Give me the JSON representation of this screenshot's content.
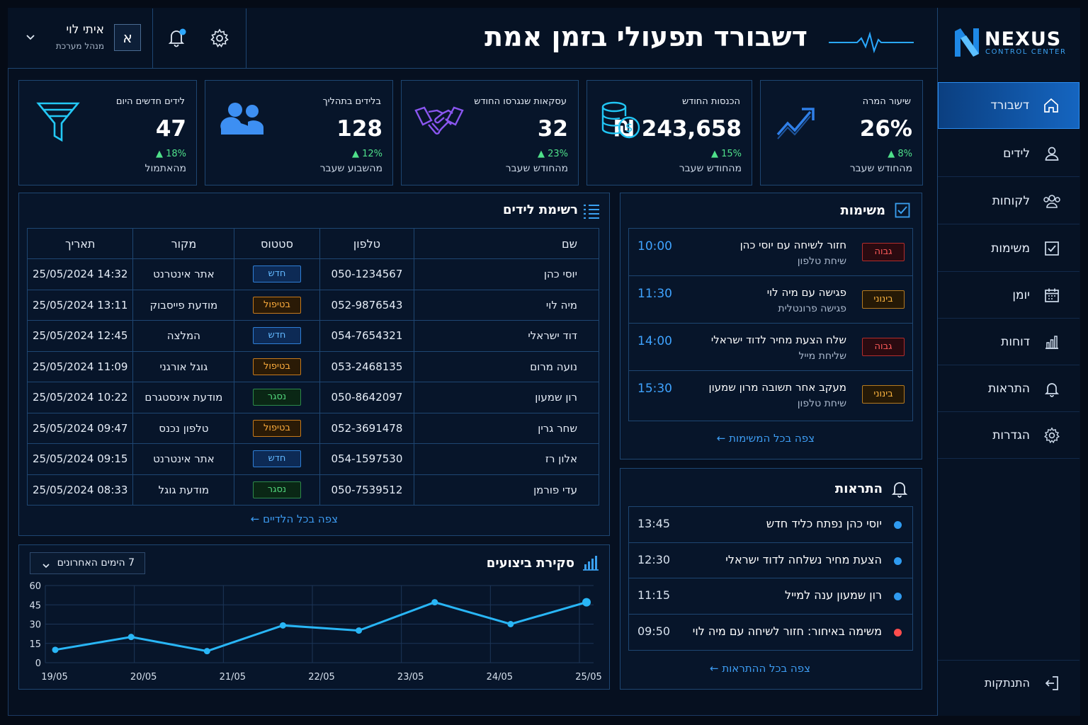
{
  "brand": {
    "name": "NEXUS",
    "subtitle": "CONTROL CENTER"
  },
  "header": {
    "title": "דשבורד תפעולי בזמן אמת"
  },
  "user": {
    "name": "איתי לוי",
    "role": "מנהל מערכת",
    "avatar_letter": "א"
  },
  "sidebar": {
    "items": [
      {
        "label": "דשבורד",
        "icon": "home-icon",
        "active": true
      },
      {
        "label": "לידים",
        "icon": "user-icon"
      },
      {
        "label": "לקוחות",
        "icon": "users-icon"
      },
      {
        "label": "משימות",
        "icon": "checkbox-icon"
      },
      {
        "label": "יומן",
        "icon": "calendar-icon"
      },
      {
        "label": "דוחות",
        "icon": "bar-chart-icon"
      },
      {
        "label": "התראות",
        "icon": "bell-icon"
      },
      {
        "label": "הגדרות",
        "icon": "gear-icon"
      }
    ],
    "logout": "התנתקות"
  },
  "kpis": [
    {
      "label": "שיעור המרה",
      "value": "26%",
      "delta": "8%",
      "foot": "מהחודש שעבר",
      "icon": "trend-up-icon"
    },
    {
      "label": "הכנסות החודש",
      "value": "243,658 ₪",
      "delta": "15%",
      "foot": "מהחודש שעבר",
      "icon": "coins-icon"
    },
    {
      "label": "עסקאות שנגרסו החודש",
      "value": "32",
      "delta": "23%",
      "foot": "מהחודש שעבר",
      "icon": "handshake-icon"
    },
    {
      "label": "בלידים בתהליך",
      "value": "128",
      "delta": "12%",
      "foot": "מהשבוע שעבר",
      "icon": "users-icon"
    },
    {
      "label": "לידים חדשים היום",
      "value": "47",
      "delta": "18%",
      "foot": "מהאתמול",
      "icon": "funnel-icon"
    }
  ],
  "leads": {
    "title": "רשימת לידים",
    "columns": [
      "שם",
      "טלפון",
      "סטטוס",
      "מקור",
      "תאריך"
    ],
    "rows": [
      {
        "name": "יוסי כהן",
        "phone": "050-1234567",
        "status": "חדש",
        "kind": "new",
        "source": "אתר אינטרנט",
        "date": "25/05/2024 14:32"
      },
      {
        "name": "מיה לוי",
        "phone": "052-9876543",
        "status": "בטיפול",
        "kind": "prog",
        "source": "מודעת פייסבוק",
        "date": "25/05/2024 13:11"
      },
      {
        "name": "דוד ישראלי",
        "phone": "054-7654321",
        "status": "חדש",
        "kind": "new",
        "source": "המלצה",
        "date": "25/05/2024 12:45"
      },
      {
        "name": "נועה מרום",
        "phone": "053-2468135",
        "status": "בטיפול",
        "kind": "prog",
        "source": "גוגל אורגני",
        "date": "25/05/2024 11:09"
      },
      {
        "name": "רון שמעון",
        "phone": "050-8642097",
        "status": "נסגר",
        "kind": "closed",
        "source": "מודעת אינסטגרם",
        "date": "25/05/2024 10:22"
      },
      {
        "name": "שחר גרין",
        "phone": "052-3691478",
        "status": "בטיפול",
        "kind": "prog",
        "source": "טלפון נכנס",
        "date": "25/05/2024 09:47"
      },
      {
        "name": "אלון רז",
        "phone": "054-1597530",
        "status": "חדש",
        "kind": "new",
        "source": "אתר אינטרנט",
        "date": "25/05/2024 09:15"
      },
      {
        "name": "עדי פורמן",
        "phone": "050-7539512",
        "status": "נסגר",
        "kind": "closed",
        "source": "מודעת גוגל",
        "date": "25/05/2024 08:33"
      }
    ],
    "view_all": "צפה בכל הלדיים"
  },
  "tasks": {
    "title": "משימות",
    "items": [
      {
        "priority": "גבוה",
        "kind": "high",
        "title": "חזור לשיחה עם יוסי כהן",
        "sub": "שיחת טלפון",
        "time": "10:00"
      },
      {
        "priority": "בינוני",
        "kind": "mid",
        "title": "פגישה עם מיה לוי",
        "sub": "פגישה פרונטלית",
        "time": "11:30"
      },
      {
        "priority": "גבוה",
        "kind": "high",
        "title": "שלח הצעת מחיר לדוד ישראלי",
        "sub": "שליחת מייל",
        "time": "14:00"
      },
      {
        "priority": "בינוני",
        "kind": "mid",
        "title": "מעקב אחר תשובה מרון שמעון",
        "sub": "שיחת טלפון",
        "time": "15:30"
      }
    ],
    "view_all": "צפה בכל המשימות"
  },
  "alerts": {
    "title": "התראות",
    "items": [
      {
        "text": "יוסי כהן נפתח כליד חדש",
        "time": "13:45",
        "color": "#2f9bf0"
      },
      {
        "text": "הצעת מחיר נשלחה לדוד ישראלי",
        "time": "12:30",
        "color": "#2f9bf0"
      },
      {
        "text": "רון שמעון ענה למייל",
        "time": "11:15",
        "color": "#2f9bf0"
      },
      {
        "text": "משימה באיחור: חזור לשיחה עם מיה לוי",
        "time": "09:50",
        "color": "#ff4d4d"
      }
    ],
    "view_all": "צפה בכל ההתראות"
  },
  "performance": {
    "title": "סקירת ביצועים",
    "period": "7 הימים האחרונים"
  },
  "chart_data": {
    "type": "line",
    "x": [
      "19/05",
      "",
      "20/05",
      "21/05",
      "22/05",
      "23/05",
      "24/05",
      "25/05"
    ],
    "x_ticks": [
      "19/05",
      "20/05",
      "21/05",
      "22/05",
      "23/05",
      "24/05",
      "25/05"
    ],
    "values": [
      10,
      20,
      9,
      29,
      25,
      47,
      30,
      47
    ],
    "ylim": [
      0,
      60
    ],
    "y_ticks": [
      0,
      15,
      30,
      45,
      60
    ],
    "grid": true,
    "color": "#29b6f6"
  },
  "colors": {
    "accent": "#1e88e5",
    "positive": "#4fe08a",
    "line": "#29b6f6"
  }
}
